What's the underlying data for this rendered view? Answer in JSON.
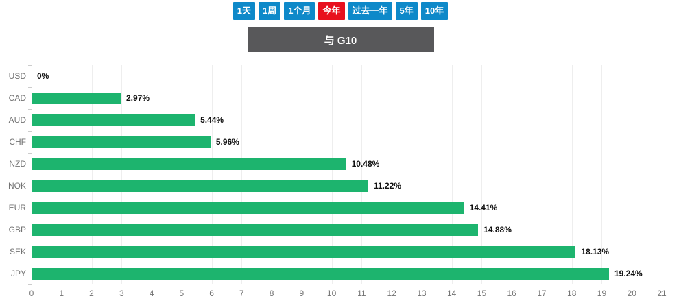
{
  "toolbar": {
    "buttons": [
      {
        "id": "1d",
        "label": "1天",
        "active": false
      },
      {
        "id": "1w",
        "label": "1周",
        "active": false
      },
      {
        "id": "1m",
        "label": "1个月",
        "active": false
      },
      {
        "id": "ytd",
        "label": "今年",
        "active": true
      },
      {
        "id": "1y",
        "label": "过去一年",
        "active": false
      },
      {
        "id": "5y",
        "label": "5年",
        "active": false
      },
      {
        "id": "10y",
        "label": "10年",
        "active": false
      }
    ]
  },
  "header": {
    "title": "与 G10"
  },
  "chart_data": {
    "type": "bar",
    "orientation": "horizontal",
    "title": "与 G10",
    "categories": [
      "USD",
      "CAD",
      "AUD",
      "CHF",
      "NZD",
      "NOK",
      "EUR",
      "GBP",
      "SEK",
      "JPY"
    ],
    "values": [
      0,
      2.97,
      5.44,
      5.96,
      10.48,
      11.22,
      14.41,
      14.88,
      18.13,
      19.24
    ],
    "value_labels": [
      "0%",
      "2.97%",
      "5.44%",
      "5.96%",
      "10.48%",
      "11.22%",
      "14.41%",
      "14.88%",
      "18.13%",
      "19.24%"
    ],
    "xlabel": "",
    "ylabel": "",
    "xlim": [
      0,
      21
    ],
    "x_tick_step": 1,
    "grid": true,
    "legend_position": "none",
    "bar_color": "#1db46e"
  },
  "colors": {
    "button_bg": "#0e89c9",
    "button_active_bg": "#e8101e",
    "button_text": "#ffffff",
    "header_bg": "#58585a",
    "header_text": "#ffffff",
    "bar": "#1db46e",
    "grid_line": "#eeeeee",
    "axis_line": "#dddddd",
    "tick": "#cccccc",
    "axis_label": "#737373",
    "value_label": "#111111"
  }
}
